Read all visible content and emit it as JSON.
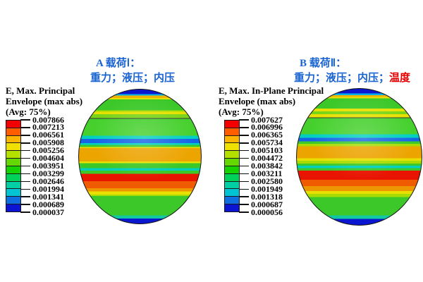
{
  "figure": {
    "background": "#ffffff",
    "title_color": "#1a64d2",
    "highlight_color": "#e60000"
  },
  "chart_data": [
    {
      "type": "heatmap",
      "panel_label": "A",
      "title": "A 载荷Ⅰ：",
      "subtitle": "重力；液压；内压",
      "subtitle_highlight": "",
      "field": "E, Max. Principal",
      "legend_title_lines": [
        "E, Max. Principal",
        "Envelope (max abs)",
        "(Avg: 75%)"
      ],
      "legend_values": [
        "0.007866",
        "0.007213",
        "0.006561",
        "0.005908",
        "0.005256",
        "0.004604",
        "0.003951",
        "0.003299",
        "0.002646",
        "0.001994",
        "0.001341",
        "0.000689",
        "0.000037"
      ],
      "legend_colors": [
        "#f50000",
        "#ff5d00",
        "#ffb400",
        "#f0e100",
        "#b4e100",
        "#64d800",
        "#16d200",
        "#00d25a",
        "#00cfa5",
        "#00c3d4",
        "#0f6fe0",
        "#0a14d2"
      ],
      "contour_bands": [
        {
          "color": "#0a16d0",
          "from": 0,
          "to": 3.5
        },
        {
          "color": "#00b4e6",
          "from": 3.5,
          "to": 4.4
        },
        {
          "color": "#eeb200",
          "from": 4.4,
          "to": 6.3
        },
        {
          "color": "#e8e000",
          "from": 6.3,
          "to": 7.3
        },
        {
          "color": "#3cc829",
          "from": 7.3,
          "to": 15.4
        },
        {
          "color": "#a8dc00",
          "from": 15.4,
          "to": 16.5
        },
        {
          "color": "#e8e000",
          "from": 16.5,
          "to": 18.5
        },
        {
          "color": "#7ad416",
          "from": 18.5,
          "to": 21.2
        },
        {
          "color": "#333333",
          "from": 21.2,
          "to": 21.8
        },
        {
          "color": "#46d02e",
          "from": 21.8,
          "to": 34.4
        },
        {
          "color": "#00cfc0",
          "from": 34.4,
          "to": 36.8
        },
        {
          "color": "#1664e6",
          "from": 36.8,
          "to": 40.0
        },
        {
          "color": "#00cfc0",
          "from": 40.0,
          "to": 41.2
        },
        {
          "color": "#3cc829",
          "from": 41.2,
          "to": 43.0
        },
        {
          "color": "#e8e000",
          "from": 43.0,
          "to": 43.8
        },
        {
          "color": "#eca400",
          "from": 43.8,
          "to": 53.6
        },
        {
          "color": "#e8e000",
          "from": 53.6,
          "to": 55.0
        },
        {
          "color": "#3cc829",
          "from": 55.0,
          "to": 58.8
        },
        {
          "color": "#00cfc0",
          "from": 58.8,
          "to": 60.4
        },
        {
          "color": "#3cc829",
          "from": 60.4,
          "to": 62.8
        },
        {
          "color": "#e81400",
          "from": 62.8,
          "to": 68.3
        },
        {
          "color": "#f05a00",
          "from": 68.3,
          "to": 73.7
        },
        {
          "color": "#ee9600",
          "from": 73.7,
          "to": 76.1
        },
        {
          "color": "#e8e000",
          "from": 76.1,
          "to": 78.4
        },
        {
          "color": "#a8dc00",
          "from": 78.4,
          "to": 79.5
        },
        {
          "color": "#3cc829",
          "from": 79.5,
          "to": 94.0
        },
        {
          "color": "#12c8a0",
          "from": 94.0,
          "to": 96.2
        },
        {
          "color": "#0a16d0",
          "from": 96.2,
          "to": 100
        }
      ]
    },
    {
      "type": "heatmap",
      "panel_label": "B",
      "title": "B 载荷Ⅱ：",
      "subtitle": "重力；液压；内压；",
      "subtitle_highlight": "温度",
      "field": "E, Max. In-Plane Principal",
      "legend_title_lines": [
        "E, Max. In-Plane Principal",
        "Envelope (max abs)",
        "(Avg: 75%)"
      ],
      "legend_values": [
        "0.007627",
        "0.006996",
        "0.006365",
        "0.005734",
        "0.005103",
        "0.004472",
        "0.003842",
        "0.003211",
        "0.002580",
        "0.001949",
        "0.001318",
        "0.000687",
        "0.000056"
      ],
      "legend_colors": [
        "#f50000",
        "#ff5d00",
        "#ffb400",
        "#f0e100",
        "#b4e100",
        "#64d800",
        "#16d200",
        "#00d25a",
        "#00cfa5",
        "#00c3d4",
        "#0f6fe0",
        "#0a14d2"
      ],
      "contour_bands": [
        {
          "color": "#0a16d0",
          "from": 0,
          "to": 3.4
        },
        {
          "color": "#00b4e6",
          "from": 3.4,
          "to": 4.6
        },
        {
          "color": "#eeb200",
          "from": 4.6,
          "to": 6.0
        },
        {
          "color": "#e8e000",
          "from": 6.0,
          "to": 7.0
        },
        {
          "color": "#3cc829",
          "from": 7.0,
          "to": 14.6
        },
        {
          "color": "#e8e000",
          "from": 14.6,
          "to": 16.6
        },
        {
          "color": "#7ad416",
          "from": 16.6,
          "to": 18.7
        },
        {
          "color": "#e8e000",
          "from": 18.7,
          "to": 21.0
        },
        {
          "color": "#333333",
          "from": 21.0,
          "to": 21.6
        },
        {
          "color": "#46d02e",
          "from": 21.6,
          "to": 33.5
        },
        {
          "color": "#00cfc0",
          "from": 33.5,
          "to": 35.9
        },
        {
          "color": "#1664e6",
          "from": 35.9,
          "to": 38.7
        },
        {
          "color": "#3cc829",
          "from": 38.7,
          "to": 40.4
        },
        {
          "color": "#a8dc00",
          "from": 40.4,
          "to": 42.1
        },
        {
          "color": "#eca400",
          "from": 42.1,
          "to": 51.0
        },
        {
          "color": "#e8e000",
          "from": 51.0,
          "to": 52.8
        },
        {
          "color": "#a8dc00",
          "from": 52.8,
          "to": 54.8
        },
        {
          "color": "#3cc829",
          "from": 54.8,
          "to": 56.5
        },
        {
          "color": "#00cfc0",
          "from": 56.5,
          "to": 58.2
        },
        {
          "color": "#3cc829",
          "from": 58.2,
          "to": 60.0
        },
        {
          "color": "#e81400",
          "from": 60.0,
          "to": 66.9
        },
        {
          "color": "#f05a00",
          "from": 66.9,
          "to": 71.6
        },
        {
          "color": "#ee9600",
          "from": 71.6,
          "to": 75.1
        },
        {
          "color": "#e8e000",
          "from": 75.1,
          "to": 77.2
        },
        {
          "color": "#a8dc00",
          "from": 77.2,
          "to": 79.5
        },
        {
          "color": "#3cc829",
          "from": 79.5,
          "to": 93.1
        },
        {
          "color": "#12c8a0",
          "from": 93.1,
          "to": 95.7
        },
        {
          "color": "#0a16d0",
          "from": 95.7,
          "to": 100
        }
      ]
    }
  ]
}
